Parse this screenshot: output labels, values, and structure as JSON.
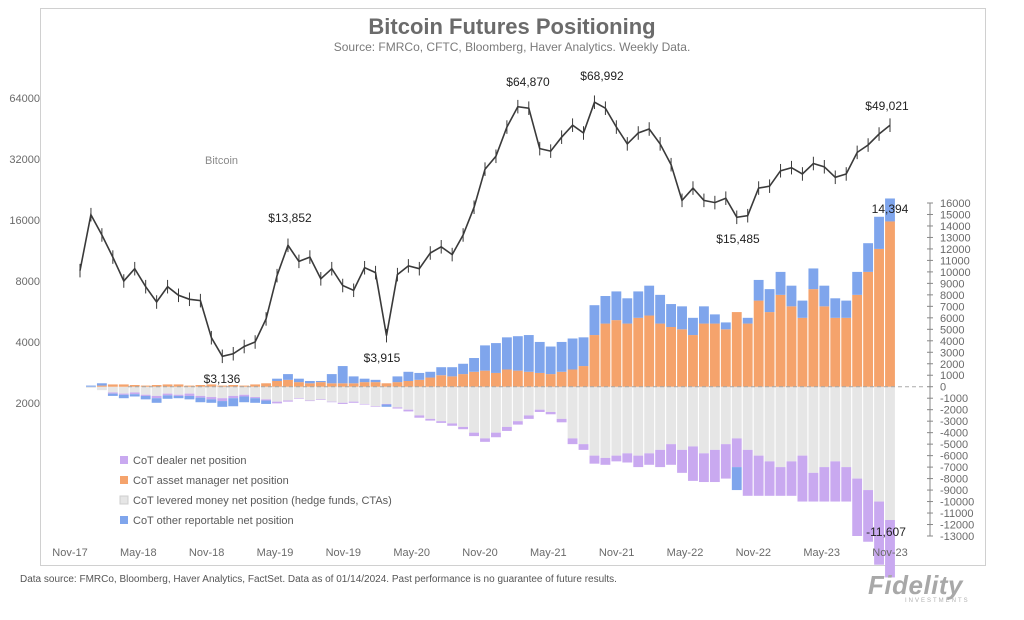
{
  "title": "Bitcoin Futures Positioning",
  "subtitle": "Source: FMRCo, CFTC, Bloomberg, Haver Analytics. Weekly Data.",
  "footer": "Data source: FMRCo, Bloomberg, Haver Analytics, FactSet. Data as of 01/14/2024. Past performance is no guarantee of future results.",
  "logo": "Fidelity",
  "logo_sub": "INVESTMENTS",
  "colors": {
    "bitcoin": "#3a3a3a",
    "dealer": "#c9a9f0",
    "asset_manager": "#f5a36c",
    "levered": "#e6e6e6",
    "other": "#7fa5ec",
    "highlight": "#ef8a3f"
  },
  "chart_data": {
    "type": "line",
    "x_ticks": [
      "Nov-17",
      "May-18",
      "Nov-18",
      "May-19",
      "Nov-19",
      "May-20",
      "Nov-20",
      "May-21",
      "Nov-21",
      "May-22",
      "Nov-22",
      "May-23",
      "Nov-23"
    ],
    "left_axis": {
      "label": "",
      "scale": "log2",
      "ticks": [
        2000,
        4000,
        8000,
        16000,
        32000,
        64000
      ],
      "range": [
        2000,
        64000
      ]
    },
    "right_axis": {
      "label": "",
      "ticks": [
        16000,
        15000,
        14000,
        13000,
        12000,
        11000,
        10000,
        9000,
        8000,
        7000,
        6000,
        5000,
        4000,
        3000,
        2000,
        1000,
        0,
        -1000,
        -2000,
        -3000,
        -4000,
        -5000,
        -6000,
        -7000,
        -8000,
        -9000,
        -10000,
        -11000,
        -12000,
        -13000
      ],
      "range": [
        -13000,
        16000
      ]
    },
    "series": [
      {
        "name": "Bitcoin",
        "axis": "left",
        "x": [
          "2017-11",
          "2017-12",
          "2018-01",
          "2018-02",
          "2018-03",
          "2018-04",
          "2018-05",
          "2018-06",
          "2018-07",
          "2018-08",
          "2018-09",
          "2018-10",
          "2018-11",
          "2018-12",
          "2019-01",
          "2019-02",
          "2019-03",
          "2019-04",
          "2019-05",
          "2019-06",
          "2019-07",
          "2019-08",
          "2019-09",
          "2019-10",
          "2019-11",
          "2019-12",
          "2020-01",
          "2020-02",
          "2020-03",
          "2020-04",
          "2020-05",
          "2020-06",
          "2020-07",
          "2020-08",
          "2020-09",
          "2020-10",
          "2020-11",
          "2020-12",
          "2021-01",
          "2021-02",
          "2021-03",
          "2021-04",
          "2021-05",
          "2021-06",
          "2021-07",
          "2021-08",
          "2021-09",
          "2021-10",
          "2021-11",
          "2021-12",
          "2022-01",
          "2022-02",
          "2022-03",
          "2022-04",
          "2022-05",
          "2022-06",
          "2022-07",
          "2022-08",
          "2022-09",
          "2022-10",
          "2022-11",
          "2022-12",
          "2023-01",
          "2023-02",
          "2023-03",
          "2023-04",
          "2023-05",
          "2023-06",
          "2023-07",
          "2023-08",
          "2023-09",
          "2023-10",
          "2023-11",
          "2023-12",
          "2024-01"
        ],
        "values": [
          9000,
          17000,
          13500,
          10500,
          8000,
          9200,
          7500,
          6300,
          7500,
          6800,
          6500,
          6400,
          4200,
          3400,
          3500,
          3800,
          4000,
          5200,
          8500,
          12000,
          10000,
          10500,
          8200,
          9200,
          7600,
          7200,
          9300,
          8800,
          4300,
          8600,
          9500,
          9200,
          11000,
          11800,
          10800,
          13500,
          18500,
          28500,
          33000,
          46000,
          58000,
          57000,
          36000,
          35000,
          41000,
          47000,
          43000,
          61000,
          57000,
          46000,
          38000,
          43000,
          45000,
          38000,
          30000,
          20000,
          23000,
          20000,
          19500,
          20500,
          16500,
          16800,
          23000,
          23500,
          28000,
          29000,
          27000,
          30400,
          29300,
          26000,
          27000,
          34500,
          37500,
          42500,
          47000
        ]
      },
      {
        "name": "CoT dealer net position",
        "axis": "right",
        "values": [
          0,
          0,
          0,
          -100,
          -100,
          -150,
          -100,
          -200,
          -150,
          -100,
          -200,
          -150,
          -200,
          -250,
          -200,
          -150,
          -100,
          -100,
          -150,
          -100,
          -50,
          -50,
          -50,
          -50,
          -100,
          -100,
          -50,
          -50,
          -50,
          -100,
          -150,
          -200,
          -150,
          -150,
          -200,
          -200,
          -300,
          -300,
          -400,
          -350,
          -300,
          -300,
          -200,
          -200,
          -300,
          -500,
          -500,
          -700,
          -600,
          -500,
          -800,
          -1000,
          -1000,
          -1500,
          -1800,
          -2000,
          -3000,
          -2500,
          -2800,
          -3000,
          -2500,
          -4000,
          -3500,
          -3000,
          -2500,
          -3000,
          -4000,
          -2500,
          -3000,
          -3500,
          -3000,
          -5000,
          -4500,
          -5500,
          -5000
        ]
      },
      {
        "name": "CoT asset manager net position",
        "axis": "right",
        "values": [
          0,
          0,
          100,
          200,
          200,
          150,
          100,
          150,
          200,
          200,
          100,
          150,
          200,
          100,
          150,
          100,
          200,
          300,
          500,
          600,
          400,
          300,
          400,
          300,
          300,
          300,
          400,
          400,
          300,
          400,
          500,
          600,
          800,
          1000,
          900,
          1100,
          1300,
          1400,
          1200,
          1500,
          1400,
          1300,
          1200,
          1100,
          1300,
          1500,
          1800,
          4500,
          5500,
          5800,
          5500,
          6000,
          6200,
          5500,
          5200,
          5000,
          4500,
          5500,
          5500,
          5000,
          6500,
          5500,
          7500,
          6500,
          8000,
          7000,
          6000,
          8500,
          7000,
          6000,
          6000,
          8000,
          10000,
          12000,
          14394
        ]
      },
      {
        "name": "CoT levered money net position (hedge funds, CTAs)",
        "axis": "right",
        "values": [
          0,
          -100,
          -300,
          -500,
          -600,
          -500,
          -700,
          -800,
          -600,
          -700,
          -600,
          -800,
          -900,
          -1000,
          -800,
          -700,
          -900,
          -1100,
          -1300,
          -1200,
          -1000,
          -1200,
          -1100,
          -1300,
          -1400,
          -1300,
          -1500,
          -1700,
          -1500,
          -1800,
          -2000,
          -2500,
          -2800,
          -3000,
          -3200,
          -3500,
          -4000,
          -4500,
          -4000,
          -3500,
          -3000,
          -2500,
          -2000,
          -2200,
          -2800,
          -4500,
          -5000,
          -6000,
          -6200,
          -6000,
          -5800,
          -6000,
          -5800,
          -5500,
          -5000,
          -5500,
          -5200,
          -5800,
          -5500,
          -5000,
          -4500,
          -5500,
          -6000,
          -6500,
          -7000,
          -6500,
          -6000,
          -7500,
          -7000,
          -6500,
          -7000,
          -8000,
          -9000,
          -10000,
          -11607
        ]
      },
      {
        "name": "CoT  other reportable net position",
        "axis": "right",
        "values": [
          0,
          100,
          200,
          -200,
          -300,
          -200,
          -300,
          -400,
          -300,
          -200,
          -300,
          -400,
          -300,
          -500,
          -700,
          -500,
          -400,
          -300,
          200,
          500,
          300,
          200,
          100,
          800,
          1500,
          600,
          300,
          200,
          -200,
          500,
          800,
          600,
          500,
          700,
          800,
          900,
          1200,
          2200,
          2600,
          2800,
          3000,
          3200,
          2700,
          2400,
          2600,
          2700,
          2500,
          2600,
          2400,
          2500,
          2200,
          2300,
          2600,
          2500,
          2000,
          2000,
          1500,
          1500,
          800,
          600,
          -2000,
          500,
          1800,
          2000,
          2000,
          1800,
          1500,
          1800,
          1800,
          1700,
          1500,
          2000,
          2500,
          2800,
          2000
        ]
      }
    ],
    "annotations": [
      {
        "text": "$13,852",
        "series": "Bitcoin"
      },
      {
        "text": "$3,136",
        "series": "Bitcoin"
      },
      {
        "text": "$3,915",
        "series": "Bitcoin"
      },
      {
        "text": "$64,870",
        "series": "Bitcoin"
      },
      {
        "text": "$68,992",
        "series": "Bitcoin"
      },
      {
        "text": "$15,485",
        "series": "Bitcoin"
      },
      {
        "text": "$49,021",
        "series": "Bitcoin"
      },
      {
        "text": "14,394",
        "series": "CoT asset manager net position"
      },
      {
        "text": "-11,607",
        "series": "CoT levered money net position (hedge funds, CTAs)"
      }
    ],
    "legend_placement": "bottom-left",
    "grid": false
  },
  "labels": {
    "bitcoin_series": "Bitcoin",
    "legend": [
      "CoT dealer net position",
      "CoT asset manager net position",
      "CoT levered money net position (hedge funds, CTAs)",
      "CoT  other reportable net position"
    ]
  }
}
